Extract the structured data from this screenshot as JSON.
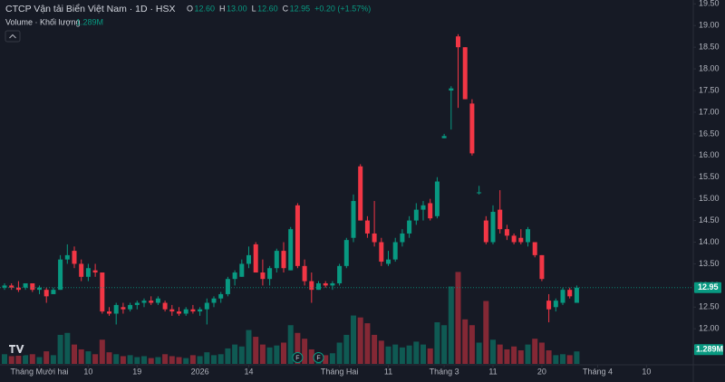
{
  "chart_data": {
    "type": "candlestick",
    "title": "CTCP Vận tải Biển Việt Nam · 1D · HSX",
    "header": {
      "o_label": "O",
      "open": "12.60",
      "h_label": "H",
      "high": "13.00",
      "l_label": "L",
      "low": "12.60",
      "c_label": "C",
      "close": "12.95",
      "change": "+0.20 (+1.57%)"
    },
    "volume_title": "Volume · Khối lượng",
    "last_volume_label": "1.289M",
    "up_color": "#089981",
    "down_color": "#f23645",
    "candles": [
      [
        12.95,
        13.05,
        12.9,
        13.0
      ],
      [
        13.0,
        13.05,
        12.9,
        12.95
      ],
      [
        12.95,
        13.1,
        12.85,
        12.9
      ],
      [
        12.95,
        13.05,
        12.9,
        13.05
      ],
      [
        13.05,
        13.05,
        12.85,
        12.9
      ],
      [
        12.9,
        13.0,
        12.8,
        12.95
      ],
      [
        12.9,
        12.95,
        12.6,
        12.75
      ],
      [
        12.8,
        12.95,
        12.8,
        12.9
      ],
      [
        12.9,
        13.7,
        12.9,
        13.6
      ],
      [
        13.6,
        13.95,
        13.5,
        13.7
      ],
      [
        13.8,
        13.9,
        13.4,
        13.5
      ],
      [
        13.5,
        13.6,
        13.1,
        13.2
      ],
      [
        13.2,
        13.5,
        13.1,
        13.4
      ],
      [
        13.35,
        13.5,
        13.2,
        13.3
      ],
      [
        13.3,
        13.3,
        12.35,
        12.4
      ],
      [
        12.4,
        12.5,
        12.3,
        12.35
      ],
      [
        12.35,
        12.6,
        12.1,
        12.55
      ],
      [
        12.5,
        12.6,
        12.35,
        12.45
      ],
      [
        12.45,
        12.6,
        12.4,
        12.55
      ],
      [
        12.55,
        12.65,
        12.45,
        12.6
      ],
      [
        12.6,
        12.7,
        12.5,
        12.65
      ],
      [
        12.65,
        12.75,
        12.55,
        12.6
      ],
      [
        12.6,
        12.75,
        12.55,
        12.7
      ],
      [
        12.6,
        12.65,
        12.4,
        12.45
      ],
      [
        12.45,
        12.55,
        12.3,
        12.4
      ],
      [
        12.4,
        12.5,
        12.3,
        12.35
      ],
      [
        12.35,
        12.5,
        12.3,
        12.45
      ],
      [
        12.45,
        12.55,
        12.35,
        12.4
      ],
      [
        12.4,
        12.5,
        12.3,
        12.45
      ],
      [
        12.45,
        12.7,
        12.1,
        12.6
      ],
      [
        12.6,
        12.75,
        12.5,
        12.7
      ],
      [
        12.7,
        12.85,
        12.6,
        12.8
      ],
      [
        12.8,
        13.2,
        12.75,
        13.15
      ],
      [
        13.15,
        13.35,
        13.0,
        13.3
      ],
      [
        13.2,
        13.6,
        13.2,
        13.5
      ],
      [
        13.5,
        13.9,
        13.4,
        13.7
      ],
      [
        13.95,
        14.0,
        13.3,
        13.3
      ],
      [
        13.3,
        13.6,
        13.0,
        13.15
      ],
      [
        13.15,
        13.45,
        13.0,
        13.4
      ],
      [
        13.4,
        13.85,
        13.3,
        13.8
      ],
      [
        13.8,
        14.0,
        13.3,
        13.4
      ],
      [
        13.35,
        14.35,
        13.35,
        14.3
      ],
      [
        14.85,
        14.9,
        13.4,
        13.45
      ],
      [
        13.45,
        13.6,
        13.0,
        13.1
      ],
      [
        13.1,
        13.3,
        12.6,
        12.9
      ],
      [
        12.9,
        13.1,
        12.9,
        13.05
      ],
      [
        13.05,
        13.1,
        12.95,
        13.0
      ],
      [
        13.0,
        13.1,
        12.9,
        13.05
      ],
      [
        13.05,
        13.5,
        13.0,
        13.45
      ],
      [
        13.45,
        14.1,
        13.4,
        14.05
      ],
      [
        14.1,
        15.1,
        14.0,
        14.95
      ],
      [
        15.75,
        15.8,
        14.5,
        14.5
      ],
      [
        14.5,
        14.6,
        14.1,
        14.2
      ],
      [
        14.2,
        14.95,
        13.9,
        14.0
      ],
      [
        14.0,
        14.1,
        13.45,
        13.55
      ],
      [
        13.5,
        13.8,
        13.45,
        13.6
      ],
      [
        13.6,
        14.1,
        13.55,
        14.0
      ],
      [
        14.0,
        14.3,
        13.9,
        14.2
      ],
      [
        14.2,
        14.6,
        14.1,
        14.5
      ],
      [
        14.5,
        14.9,
        14.4,
        14.75
      ],
      [
        14.75,
        14.95,
        14.5,
        14.85
      ],
      [
        14.9,
        15.0,
        14.5,
        14.55
      ],
      [
        14.6,
        15.5,
        14.55,
        15.4
      ],
      [
        16.4,
        16.5,
        16.4,
        16.45
      ],
      [
        17.5,
        17.6,
        16.6,
        17.55
      ],
      [
        18.75,
        18.8,
        17.1,
        18.5
      ],
      [
        18.5,
        18.5,
        17.3,
        17.3
      ],
      [
        17.2,
        17.3,
        16.0,
        16.05
      ],
      [
        15.15,
        15.3,
        15.1,
        15.15
      ],
      [
        14.5,
        14.6,
        13.95,
        14.0
      ],
      [
        14.0,
        14.85,
        13.95,
        14.7
      ],
      [
        14.75,
        15.2,
        14.2,
        14.3
      ],
      [
        14.3,
        14.4,
        14.05,
        14.15
      ],
      [
        14.15,
        14.2,
        13.95,
        14.0
      ],
      [
        14.1,
        14.3,
        13.95,
        14.0
      ],
      [
        14.0,
        14.35,
        13.9,
        14.3
      ],
      [
        14.0,
        14.0,
        13.65,
        13.7
      ],
      [
        13.7,
        13.7,
        13.1,
        13.15
      ],
      [
        12.65,
        12.8,
        12.15,
        12.45
      ],
      [
        12.5,
        12.7,
        12.4,
        12.65
      ],
      [
        12.6,
        12.95,
        12.55,
        12.9
      ],
      [
        12.9,
        12.95,
        12.7,
        12.75
      ],
      [
        12.6,
        13.0,
        12.6,
        12.95
      ]
    ],
    "volumes": [
      1.0,
      0.8,
      1.2,
      0.9,
      1.0,
      0.7,
      1.3,
      0.9,
      3.0,
      3.2,
      2.0,
      1.5,
      1.3,
      1.0,
      2.5,
      1.2,
      1.0,
      0.8,
      0.9,
      0.7,
      0.8,
      0.6,
      0.7,
      1.0,
      0.8,
      0.7,
      0.6,
      0.9,
      0.8,
      1.2,
      0.9,
      1.0,
      1.6,
      2.0,
      1.8,
      3.5,
      2.8,
      2.0,
      1.7,
      1.9,
      2.2,
      4.0,
      3.2,
      2.6,
      1.5,
      1.0,
      0.9,
      1.1,
      2.2,
      3.0,
      5.0,
      4.8,
      4.2,
      3.0,
      2.4,
      1.8,
      2.0,
      1.7,
      1.9,
      2.3,
      2.0,
      1.6,
      4.3,
      4.0,
      8.0,
      9.5,
      4.6,
      4.0,
      2.2,
      6.5,
      2.5,
      2.0,
      1.5,
      1.8,
      1.4,
      2.0,
      2.6,
      2.2,
      1.4,
      0.9,
      1.0,
      0.9,
      1.289
    ],
    "volume_lim": [
      0,
      37.6
    ],
    "ylim": [
      11.19,
      19.59
    ],
    "yticks": [
      {
        "value": 19.5,
        "label": "19.50"
      },
      {
        "value": 19,
        "label": "19.00"
      },
      {
        "value": 18.5,
        "label": "18.50"
      },
      {
        "value": 18,
        "label": "18.00"
      },
      {
        "value": 17.5,
        "label": "17.50"
      },
      {
        "value": 17,
        "label": "17.00"
      },
      {
        "value": 16.5,
        "label": "16.50"
      },
      {
        "value": 16,
        "label": "16.00"
      },
      {
        "value": 15.5,
        "label": "15.50"
      },
      {
        "value": 15,
        "label": "15.00"
      },
      {
        "value": 14.5,
        "label": "14.50"
      },
      {
        "value": 14,
        "label": "14.00"
      },
      {
        "value": 13.5,
        "label": "13.50"
      },
      {
        "value": 13,
        "label": "13.00"
      },
      {
        "value": 12.5,
        "label": "12.50"
      },
      {
        "value": 12,
        "label": "12.00"
      }
    ],
    "xlim": [
      -0.65,
      98.7
    ],
    "xticks": [
      {
        "value": 5,
        "label": "Tháng Mười hai"
      },
      {
        "value": 12,
        "label": "10"
      },
      {
        "value": 19,
        "label": "19"
      },
      {
        "value": 28,
        "label": "2026"
      },
      {
        "value": 35,
        "label": "14"
      },
      {
        "value": 48,
        "label": "Tháng Hai"
      },
      {
        "value": 55,
        "label": "11"
      },
      {
        "value": 63,
        "label": "Tháng 3"
      },
      {
        "value": 70,
        "label": "11"
      },
      {
        "value": 77,
        "label": "20"
      },
      {
        "value": 85,
        "label": "Tháng 4"
      },
      {
        "value": 92,
        "label": "10"
      }
    ],
    "events": [
      {
        "index": 42,
        "label": "F"
      },
      {
        "index": 45,
        "label": "F"
      }
    ]
  }
}
